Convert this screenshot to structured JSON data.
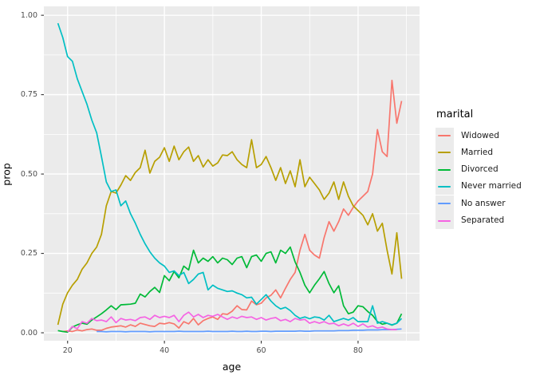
{
  "figure": {
    "background": "#FFFFFF",
    "panel_background": "#EBEBEB",
    "grid_color": "#FFFFFF",
    "tick_mark_color": "#333333",
    "tick_label_color": "#4D4D4D",
    "axis_title_color": "#000000"
  },
  "axes": {
    "x": {
      "title": "age",
      "tick_labels": [
        "20",
        "40",
        "60",
        "80"
      ],
      "tick_values": [
        20,
        40,
        60,
        80
      ],
      "minor_values": [
        30,
        50,
        70,
        90
      ]
    },
    "y": {
      "title": "prop",
      "tick_labels": [
        "0.00",
        "0.25",
        "0.50",
        "0.75",
        "1.00"
      ],
      "tick_values": [
        0,
        0.25,
        0.5,
        0.75,
        1
      ],
      "minor_values": [
        0.125,
        0.375,
        0.625,
        0.875
      ]
    }
  },
  "legend": {
    "title": "marital",
    "entries": [
      "Widowed",
      "Married",
      "Divorced",
      "Never married",
      "No answer",
      "Separated"
    ]
  },
  "chart_data": {
    "type": "line",
    "title": "",
    "xlabel": "age",
    "ylabel": "prop",
    "xlim": [
      15.1,
      92.7
    ],
    "ylim": [
      -0.025,
      1.028
    ],
    "grid": true,
    "legend_position": "right",
    "x_unit": "years, one data point per age",
    "series": [
      {
        "name": "Widowed",
        "color": "#F8766D",
        "x_start": 19,
        "x_step": 1,
        "y": [
          0.004,
          0.006,
          0.004,
          0.009,
          0.006,
          0.01,
          0.012,
          0.008,
          0.008,
          0.014,
          0.018,
          0.02,
          0.022,
          0.018,
          0.025,
          0.02,
          0.03,
          0.026,
          0.022,
          0.02,
          0.03,
          0.028,
          0.032,
          0.028,
          0.015,
          0.035,
          0.028,
          0.045,
          0.025,
          0.038,
          0.045,
          0.05,
          0.042,
          0.06,
          0.058,
          0.068,
          0.085,
          0.073,
          0.072,
          0.1,
          0.088,
          0.093,
          0.11,
          0.118,
          0.135,
          0.11,
          0.14,
          0.168,
          0.19,
          0.26,
          0.31,
          0.26,
          0.245,
          0.235,
          0.3,
          0.35,
          0.32,
          0.35,
          0.39,
          0.37,
          0.395,
          0.415,
          0.43,
          0.445,
          0.5,
          0.64,
          0.57,
          0.555,
          0.795,
          0.66,
          0.73
        ]
      },
      {
        "name": "Married",
        "color": "#B79F00",
        "x_start": 18,
        "x_step": 1,
        "y": [
          0.025,
          0.09,
          0.126,
          0.15,
          0.168,
          0.2,
          0.22,
          0.25,
          0.27,
          0.31,
          0.4,
          0.445,
          0.44,
          0.465,
          0.495,
          0.48,
          0.505,
          0.52,
          0.575,
          0.503,
          0.54,
          0.553,
          0.583,
          0.54,
          0.588,
          0.545,
          0.57,
          0.585,
          0.54,
          0.558,
          0.522,
          0.545,
          0.525,
          0.535,
          0.56,
          0.558,
          0.57,
          0.545,
          0.53,
          0.52,
          0.608,
          0.52,
          0.53,
          0.555,
          0.52,
          0.48,
          0.52,
          0.47,
          0.51,
          0.46,
          0.545,
          0.46,
          0.49,
          0.47,
          0.45,
          0.42,
          0.44,
          0.475,
          0.42,
          0.475,
          0.43,
          0.4,
          0.385,
          0.37,
          0.34,
          0.375,
          0.32,
          0.345,
          0.26,
          0.185,
          0.315,
          0.17
        ]
      },
      {
        "name": "Divorced",
        "color": "#00BA38",
        "x_start": 18,
        "x_step": 1,
        "y": [
          0.007,
          0.004,
          0.002,
          0.018,
          0.025,
          0.03,
          0.027,
          0.04,
          0.05,
          0.06,
          0.072,
          0.085,
          0.073,
          0.088,
          0.089,
          0.09,
          0.093,
          0.122,
          0.113,
          0.13,
          0.143,
          0.127,
          0.18,
          0.164,
          0.193,
          0.173,
          0.21,
          0.198,
          0.26,
          0.22,
          0.235,
          0.225,
          0.24,
          0.22,
          0.235,
          0.23,
          0.215,
          0.235,
          0.24,
          0.205,
          0.24,
          0.245,
          0.225,
          0.25,
          0.255,
          0.22,
          0.26,
          0.25,
          0.27,
          0.223,
          0.19,
          0.15,
          0.126,
          0.15,
          0.17,
          0.193,
          0.155,
          0.126,
          0.148,
          0.085,
          0.06,
          0.065,
          0.085,
          0.082,
          0.067,
          0.055,
          0.035,
          0.027,
          0.03,
          0.024,
          0.03,
          0.06
        ]
      },
      {
        "name": "Never married",
        "color": "#00BFC4",
        "x_start": 18,
        "x_step": 1,
        "y": [
          0.975,
          0.93,
          0.87,
          0.855,
          0.8,
          0.76,
          0.72,
          0.67,
          0.63,
          0.555,
          0.475,
          0.445,
          0.45,
          0.4,
          0.415,
          0.375,
          0.345,
          0.31,
          0.28,
          0.255,
          0.235,
          0.22,
          0.21,
          0.19,
          0.195,
          0.18,
          0.19,
          0.155,
          0.168,
          0.185,
          0.19,
          0.135,
          0.15,
          0.14,
          0.135,
          0.13,
          0.132,
          0.125,
          0.12,
          0.11,
          0.112,
          0.09,
          0.105,
          0.12,
          0.1,
          0.085,
          0.075,
          0.08,
          0.07,
          0.055,
          0.045,
          0.05,
          0.044,
          0.05,
          0.048,
          0.04,
          0.055,
          0.035,
          0.04,
          0.045,
          0.04,
          0.048,
          0.035,
          0.035,
          0.035,
          0.085,
          0.03,
          0.035,
          0.03,
          0.025,
          0.03,
          0.045
        ]
      },
      {
        "name": "No answer",
        "color": "#619CFF",
        "x_start": 26,
        "x_step": 1,
        "y": [
          0.004,
          0.004,
          0.003,
          0.004,
          0.004,
          0.004,
          0.003,
          0.004,
          0.004,
          0.004,
          0.004,
          0.003,
          0.004,
          0.004,
          0.004,
          0.004,
          0.004,
          0.005,
          0.004,
          0.004,
          0.004,
          0.004,
          0.004,
          0.005,
          0.004,
          0.004,
          0.004,
          0.004,
          0.005,
          0.004,
          0.004,
          0.005,
          0.004,
          0.004,
          0.005,
          0.005,
          0.004,
          0.005,
          0.005,
          0.005,
          0.005,
          0.005,
          0.006,
          0.005,
          0.005,
          0.006,
          0.006,
          0.006,
          0.006,
          0.006,
          0.007,
          0.007,
          0.007,
          0.008,
          0.008,
          0.008,
          0.009,
          0.009,
          0.009,
          0.01,
          0.01,
          0.01,
          0.011,
          0.012
        ]
      },
      {
        "name": "Separated",
        "color": "#F564E3",
        "x_start": 20,
        "x_step": 1,
        "y": [
          0.003,
          0.02,
          0.013,
          0.035,
          0.03,
          0.045,
          0.038,
          0.04,
          0.035,
          0.05,
          0.032,
          0.045,
          0.04,
          0.042,
          0.038,
          0.048,
          0.05,
          0.042,
          0.055,
          0.048,
          0.052,
          0.048,
          0.055,
          0.035,
          0.055,
          0.065,
          0.05,
          0.058,
          0.048,
          0.055,
          0.052,
          0.058,
          0.05,
          0.042,
          0.05,
          0.045,
          0.052,
          0.048,
          0.05,
          0.042,
          0.048,
          0.04,
          0.045,
          0.048,
          0.038,
          0.042,
          0.035,
          0.045,
          0.04,
          0.042,
          0.03,
          0.035,
          0.03,
          0.035,
          0.028,
          0.03,
          0.022,
          0.028,
          0.022,
          0.03,
          0.02,
          0.028,
          0.018,
          0.022,
          0.015,
          0.018,
          0.012,
          0.01,
          0.01
        ]
      }
    ]
  }
}
